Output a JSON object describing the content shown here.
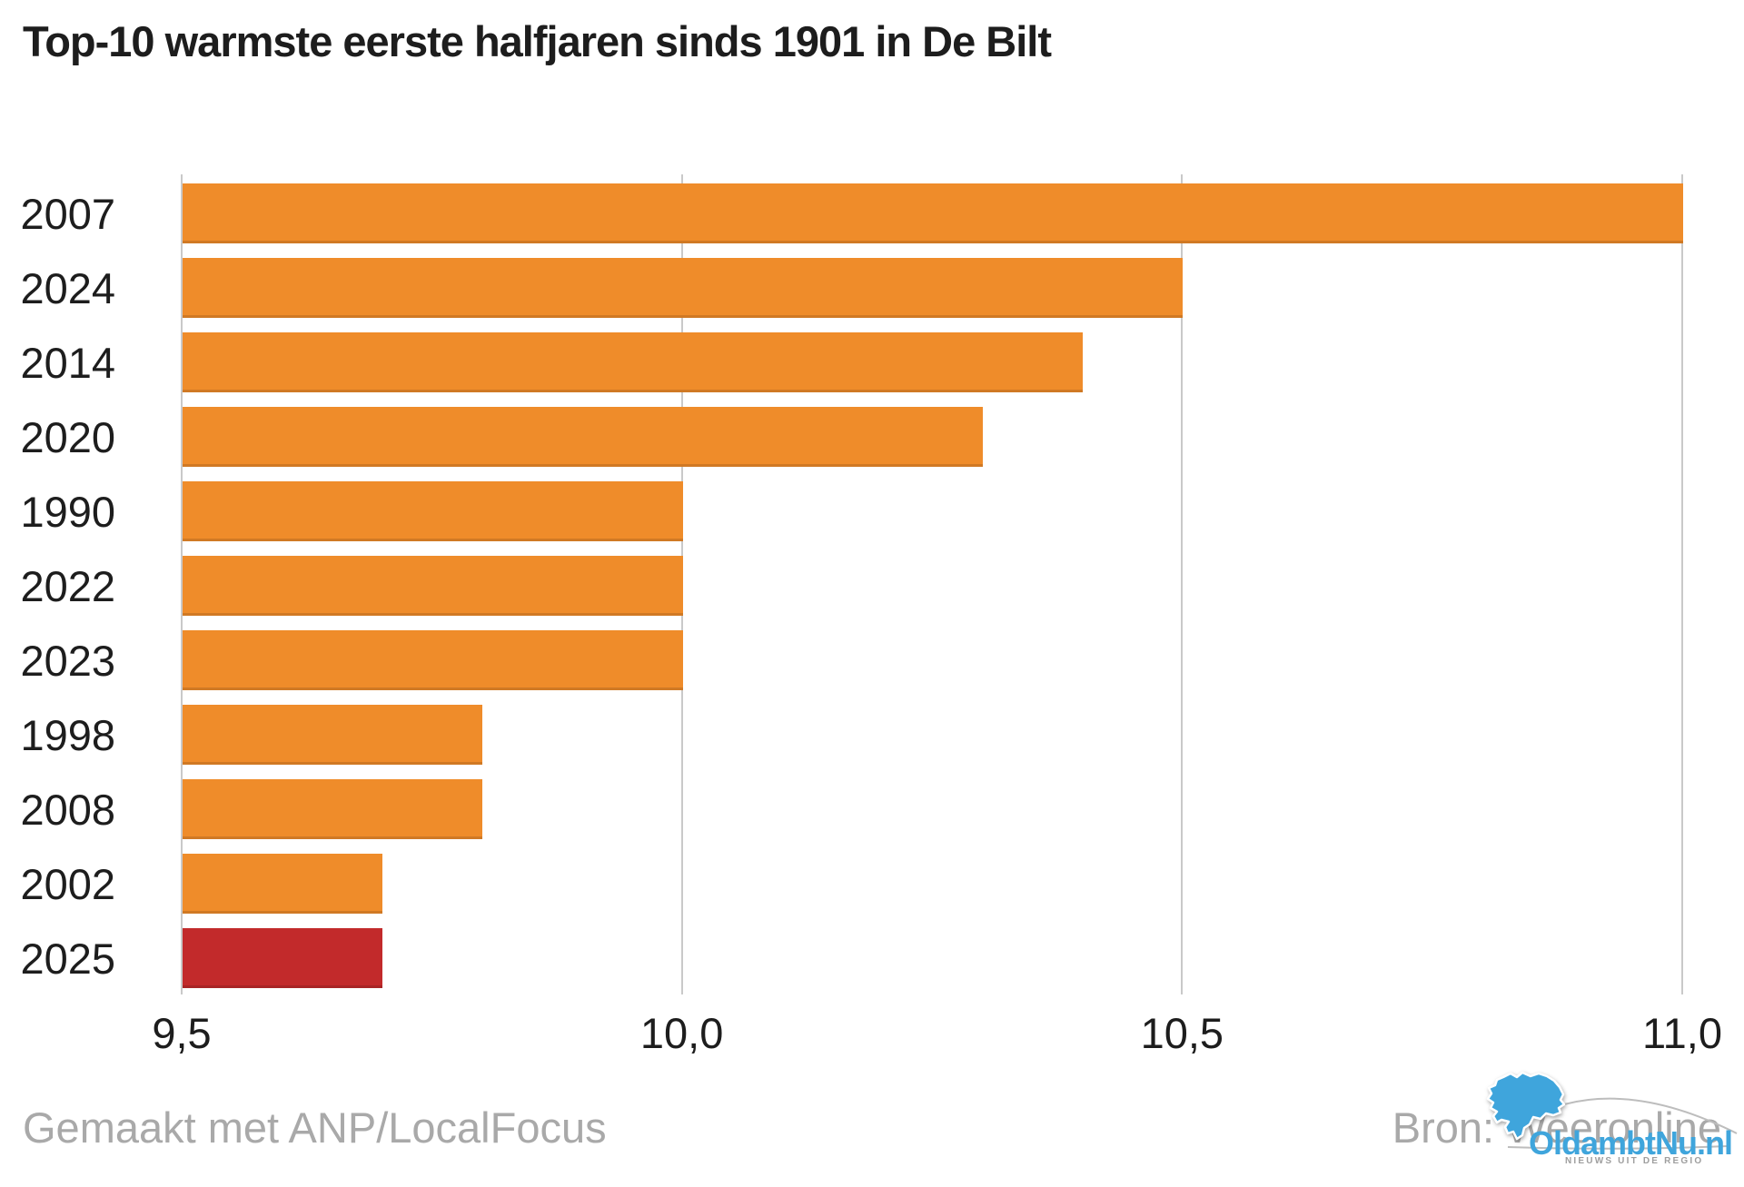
{
  "title": "Top-10 warmste eerste halfjaren sinds 1901 in De Bilt",
  "chart_data": {
    "type": "bar",
    "orientation": "horizontal",
    "title": "Top-10 warmste eerste halfjaren sinds 1901 in De Bilt",
    "categories": [
      "2007",
      "2024",
      "2014",
      "2020",
      "1990",
      "2022",
      "2023",
      "1998",
      "2008",
      "2002",
      "2025"
    ],
    "values": [
      11.0,
      10.5,
      10.4,
      10.3,
      10.0,
      10.0,
      10.0,
      9.8,
      9.8,
      9.7,
      9.7
    ],
    "xlim": [
      9.5,
      11.0
    ],
    "x_ticks": [
      {
        "value": 9.5,
        "label": "9,5"
      },
      {
        "value": 10.0,
        "label": "10,0"
      },
      {
        "value": 10.5,
        "label": "10,5"
      },
      {
        "value": 11.0,
        "label": "11,0"
      }
    ],
    "grid": true,
    "legend": false,
    "bar_color": "#EF8C2A",
    "highlight": {
      "category": "2025",
      "color": "#C22A2B"
    }
  },
  "footer": {
    "credit": "Gemaakt met ANP/LocalFocus",
    "source": "Bron: Weeronline"
  },
  "logo": {
    "title": "OldambtNu.nl",
    "tagline": "NIEUWS UIT DE REGIO",
    "accent_color": "#3FA5DC"
  },
  "colors": {
    "background": "#FFFFFF",
    "grid": "#C9C9C9",
    "text": "#1D1D1D",
    "muted": "#A9A9A9"
  }
}
